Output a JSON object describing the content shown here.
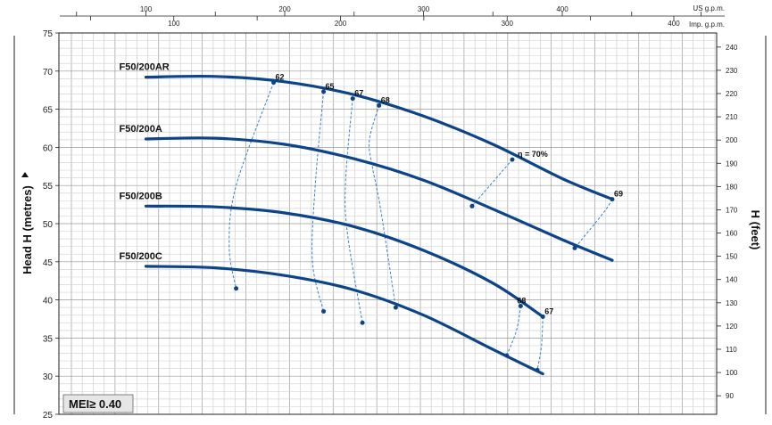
{
  "chart_data": {
    "type": "line",
    "top_axis_units": [
      "US g.p.m.",
      "Imp. g.p.m."
    ],
    "us_gpm_ticks": [
      100,
      200,
      300,
      400
    ],
    "imp_gpm_ticks": [
      100,
      200,
      300,
      400
    ],
    "ylabel_left": "Head H (metres)",
    "ylabel_right": "H (feet)",
    "left_ticks": [
      25,
      30,
      35,
      40,
      45,
      50,
      55,
      60,
      65,
      70,
      75
    ],
    "right_ticks": [
      90,
      100,
      110,
      120,
      130,
      140,
      150,
      160,
      170,
      180,
      190,
      200,
      210,
      220,
      230,
      240
    ],
    "ylim_m": [
      25,
      75
    ],
    "xlim_us_gpm": [
      0,
      470
    ],
    "series": [
      {
        "name": "F50/200AR",
        "x": [
          100,
          150,
          200,
          250,
          300,
          350,
          400,
          436
        ],
        "y": [
          69.2,
          69.3,
          68.6,
          66.9,
          64.1,
          60.4,
          55.9,
          53.2
        ]
      },
      {
        "name": "F50/200A",
        "x": [
          100,
          150,
          200,
          250,
          300,
          350,
          400,
          436
        ],
        "y": [
          61.1,
          61.2,
          60.4,
          58.5,
          55.7,
          51.9,
          47.9,
          45.2
        ]
      },
      {
        "name": "F50/200B",
        "x": [
          100,
          150,
          200,
          250,
          300,
          350,
          386
        ],
        "y": [
          52.3,
          52.2,
          51.4,
          49.6,
          46.5,
          42.2,
          37.8
        ]
      },
      {
        "name": "F50/200C",
        "x": [
          100,
          150,
          200,
          250,
          300,
          350,
          386
        ],
        "y": [
          44.4,
          44.2,
          43.2,
          41.3,
          38.0,
          33.5,
          30.3
        ]
      }
    ],
    "efficiency_contours": [
      {
        "label": "62",
        "x": [
          192,
          165,
          160,
          165
        ],
        "y": [
          68.5,
          55,
          47,
          41.5
        ]
      },
      {
        "label": "65",
        "x": [
          228,
          222,
          220,
          228
        ],
        "y": [
          67.3,
          55,
          45,
          38.5
        ]
      },
      {
        "label": "67",
        "x": [
          249,
          244,
          245,
          256
        ],
        "y": [
          66.4,
          56,
          49,
          37
        ]
      },
      {
        "label": "68",
        "x": [
          268,
          261,
          263,
          269,
          280
        ],
        "y": [
          65.5,
          61,
          57.6,
          52,
          39
        ]
      },
      {
        "label": "η = 70%",
        "x": [
          364,
          335
        ],
        "y": [
          58.4,
          52.3
        ]
      },
      {
        "label": "69",
        "x": [
          436,
          430,
          409
        ],
        "y": [
          53.2,
          51.5,
          46.8
        ]
      },
      {
        "label": "68",
        "x": [
          370,
          367,
          360
        ],
        "y": [
          39.2,
          36,
          32.7
        ]
      },
      {
        "label": "67",
        "x": [
          386,
          385,
          382
        ],
        "y": [
          37.8,
          34,
          30.8
        ]
      }
    ],
    "grid": true,
    "badge": "MEI≥ 0.40"
  }
}
